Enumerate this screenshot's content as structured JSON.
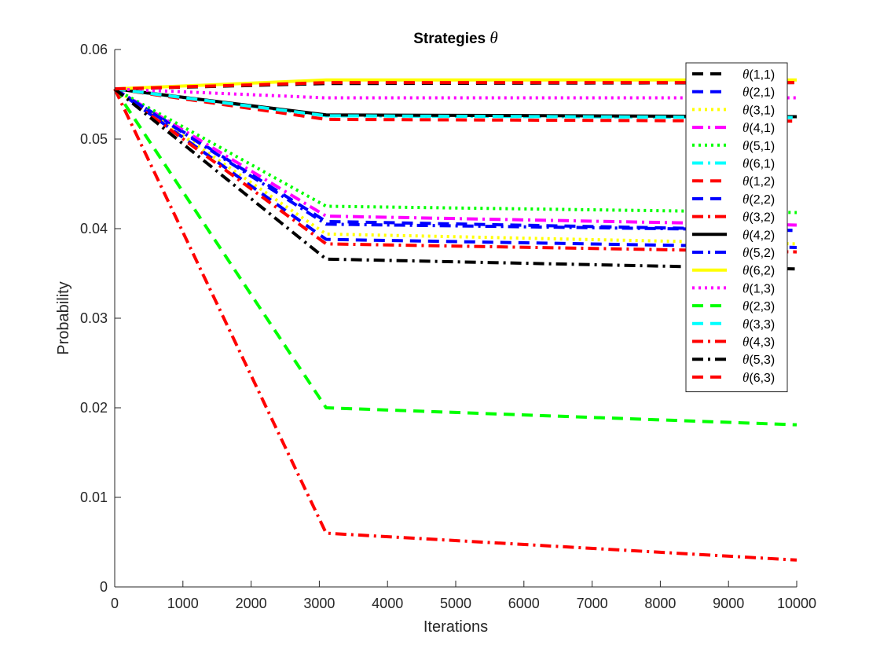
{
  "chart_data": {
    "type": "line",
    "title": "Strategies",
    "title_symbol": "θ",
    "xlabel": "Iterations",
    "ylabel": "Probability",
    "xlim": [
      0,
      10000
    ],
    "ylim": [
      0,
      0.06
    ],
    "xticks": [
      "0",
      "1000",
      "2000",
      "3000",
      "4000",
      "5000",
      "6000",
      "7000",
      "8000",
      "9000",
      "10000"
    ],
    "yticks": [
      "0",
      "0.01",
      "0.02",
      "0.03",
      "0.04",
      "0.05",
      "0.06"
    ],
    "grid": false,
    "legend_position": "top-right",
    "x": [
      0,
      3100,
      10000
    ],
    "series": [
      {
        "name": "(1,1)",
        "color": "#000000",
        "style": "dashed",
        "values": [
          0.0556,
          0.0562,
          0.0563
        ]
      },
      {
        "name": "(2,1)",
        "color": "#0000ff",
        "style": "dashed",
        "values": [
          0.0556,
          0.0408,
          0.0398
        ]
      },
      {
        "name": "(3,1)",
        "color": "#ffff00",
        "style": "dotted",
        "values": [
          0.0556,
          0.0394,
          0.0383
        ]
      },
      {
        "name": "(4,1)",
        "color": "#ff00ff",
        "style": "dashdot",
        "values": [
          0.0556,
          0.0414,
          0.0404
        ]
      },
      {
        "name": "(5,1)",
        "color": "#00ff00",
        "style": "dotted",
        "values": [
          0.0556,
          0.0425,
          0.0418
        ]
      },
      {
        "name": "(6,1)",
        "color": "#00ffff",
        "style": "dashdot",
        "values": [
          0.0556,
          0.0526,
          0.0524
        ]
      },
      {
        "name": "(1,2)",
        "color": "#ff0000",
        "style": "dashed",
        "values": [
          0.0556,
          0.0522,
          0.052
        ]
      },
      {
        "name": "(2,2)",
        "color": "#0000ff",
        "style": "dashed",
        "values": [
          0.0556,
          0.0388,
          0.0379
        ]
      },
      {
        "name": "(3,2)",
        "color": "#ff0000",
        "style": "dashdot",
        "values": [
          0.0556,
          0.0383,
          0.0374
        ]
      },
      {
        "name": "(4,2)",
        "color": "#000000",
        "style": "solid",
        "values": [
          0.0556,
          0.0527,
          0.0525
        ]
      },
      {
        "name": "(5,2)",
        "color": "#0000ff",
        "style": "dashdot",
        "values": [
          0.0556,
          0.0405,
          0.0398
        ]
      },
      {
        "name": "(6,2)",
        "color": "#ffff00",
        "style": "solid",
        "values": [
          0.0556,
          0.0566,
          0.0566
        ]
      },
      {
        "name": "(1,3)",
        "color": "#ff00ff",
        "style": "dotted",
        "values": [
          0.0556,
          0.0546,
          0.0546
        ]
      },
      {
        "name": "(2,3)",
        "color": "#00ff00",
        "style": "dashed",
        "values": [
          0.0556,
          0.02,
          0.0181
        ]
      },
      {
        "name": "(3,3)",
        "color": "#00ffff",
        "style": "dashed",
        "values": [
          0.0556,
          0.0526,
          0.0524
        ]
      },
      {
        "name": "(4,3)",
        "color": "#ff0000",
        "style": "dashdot",
        "values": [
          0.0556,
          0.006,
          0.003
        ]
      },
      {
        "name": "(5,3)",
        "color": "#000000",
        "style": "dashdot",
        "values": [
          0.0556,
          0.0366,
          0.0355
        ]
      },
      {
        "name": "(6,3)",
        "color": "#ff0000",
        "style": "dashed",
        "values": [
          0.0556,
          0.0563,
          0.0563
        ]
      }
    ]
  }
}
